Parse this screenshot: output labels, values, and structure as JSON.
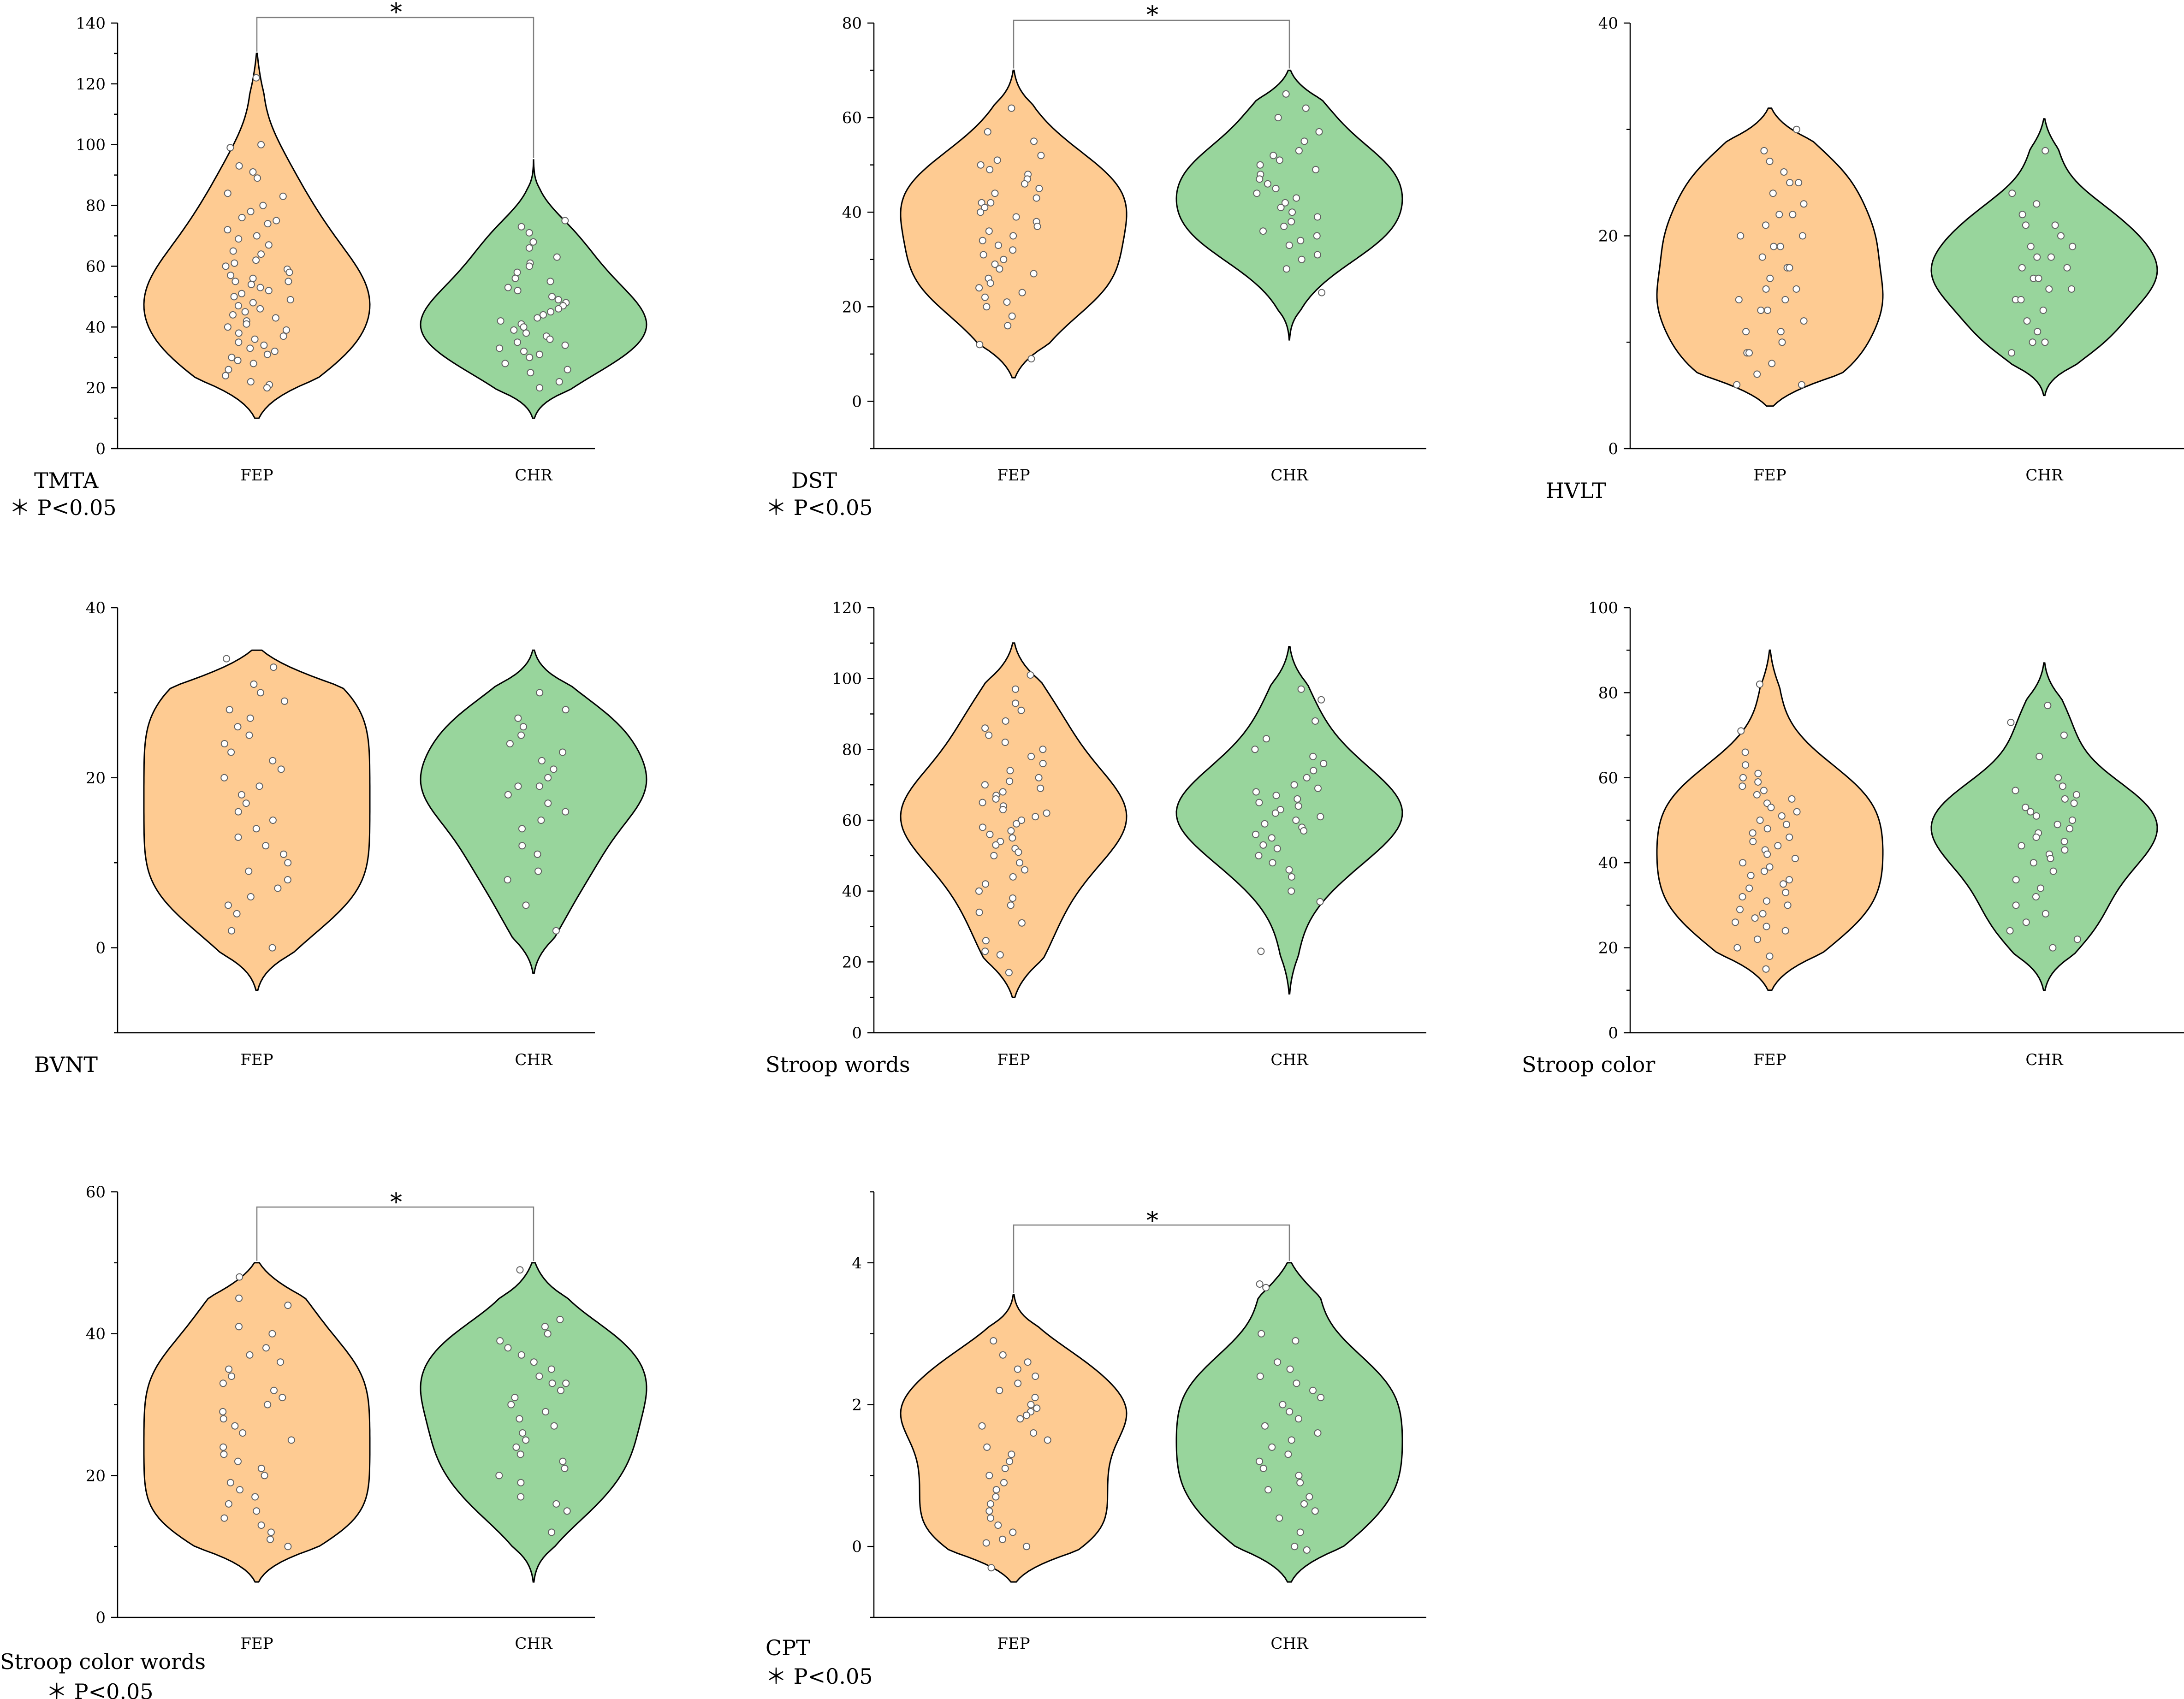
{
  "figure": {
    "colors": {
      "fep": "#FECB92",
      "chr": "#98D59C",
      "outline": "#000000",
      "bracket": "#7f7f7f",
      "point_fill": "#ffffff",
      "point_stroke": "#606060"
    }
  },
  "chart_data": [
    {
      "type": "violin",
      "title": "TMTA",
      "note": "＊ P<0.05",
      "significance": "*",
      "ylim": [
        0,
        140
      ],
      "yticks": [
        0,
        20,
        40,
        60,
        80,
        100,
        120,
        140
      ],
      "categories": [
        "FEP",
        "CHR"
      ],
      "series": [
        {
          "name": "FEP",
          "range": [
            10,
            130
          ],
          "points": [
            122,
            100,
            99,
            93,
            91,
            89,
            84,
            83,
            80,
            78,
            76,
            75,
            74,
            72,
            70,
            69,
            67,
            65,
            64,
            62,
            61,
            60,
            59,
            58,
            57,
            56,
            55,
            55,
            54,
            53,
            52,
            51,
            50,
            49,
            48,
            47,
            46,
            45,
            44,
            43,
            42,
            41,
            40,
            39,
            38,
            37,
            36,
            35,
            34,
            33,
            32,
            31,
            30,
            29,
            28,
            26,
            24,
            22,
            21,
            20
          ]
        },
        {
          "name": "CHR",
          "range": [
            10,
            95
          ],
          "points": [
            75,
            73,
            71,
            68,
            66,
            63,
            61,
            60,
            58,
            56,
            55,
            53,
            52,
            50,
            49,
            48,
            47,
            46,
            45,
            44,
            43,
            42,
            41,
            40,
            39,
            38,
            37,
            36,
            35,
            34,
            33,
            32,
            31,
            30,
            28,
            26,
            25,
            22,
            20
          ]
        }
      ]
    },
    {
      "type": "violin",
      "title": "DST",
      "note": "＊ P<0.05",
      "significance": "*",
      "ylim": [
        -10,
        80
      ],
      "yticks": [
        0,
        20,
        40,
        60,
        80
      ],
      "categories": [
        "FEP",
        "CHR"
      ],
      "series": [
        {
          "name": "FEP",
          "range": [
            5,
            70
          ],
          "points": [
            62,
            57,
            55,
            52,
            51,
            50,
            49,
            48,
            47,
            46,
            45,
            44,
            43,
            42,
            42,
            41,
            40,
            39,
            38,
            37,
            36,
            35,
            34,
            33,
            32,
            31,
            30,
            29,
            28,
            27,
            26,
            25,
            24,
            23,
            22,
            21,
            20,
            18,
            16,
            12,
            9
          ]
        },
        {
          "name": "CHR",
          "range": [
            13,
            70
          ],
          "points": [
            65,
            62,
            60,
            57,
            55,
            53,
            52,
            51,
            50,
            49,
            48,
            47,
            46,
            45,
            44,
            43,
            42,
            41,
            40,
            39,
            38,
            37,
            36,
            35,
            34,
            33,
            31,
            30,
            28,
            23
          ]
        }
      ]
    },
    {
      "type": "violin",
      "title": "HVLT",
      "note": "",
      "significance": "",
      "ylim": [
        0,
        40
      ],
      "yticks": [
        0,
        20,
        40
      ],
      "categories": [
        "FEP",
        "CHR"
      ],
      "series": [
        {
          "name": "FEP",
          "range": [
            4,
            32
          ],
          "points": [
            30,
            28,
            27,
            26,
            25,
            25,
            24,
            23,
            22,
            22,
            21,
            20,
            20,
            19,
            19,
            18,
            17,
            17,
            16,
            15,
            15,
            14,
            14,
            13,
            13,
            12,
            11,
            11,
            10,
            9,
            9,
            8,
            7,
            6,
            6
          ]
        },
        {
          "name": "CHR",
          "range": [
            5,
            31
          ],
          "points": [
            28,
            24,
            23,
            22,
            21,
            21,
            20,
            19,
            19,
            18,
            18,
            17,
            17,
            16,
            16,
            15,
            15,
            14,
            14,
            13,
            12,
            11,
            10,
            10,
            9
          ]
        }
      ]
    },
    {
      "type": "violin",
      "title": "BVNT",
      "note": "",
      "significance": "",
      "ylim": [
        -10,
        40
      ],
      "yticks": [
        0,
        20,
        40
      ],
      "categories": [
        "FEP",
        "CHR"
      ],
      "series": [
        {
          "name": "FEP",
          "range": [
            -5,
            35
          ],
          "points": [
            34,
            33,
            31,
            30,
            29,
            28,
            27,
            26,
            25,
            24,
            23,
            22,
            21,
            20,
            19,
            18,
            17,
            16,
            15,
            14,
            13,
            12,
            11,
            10,
            9,
            8,
            7,
            6,
            5,
            4,
            2,
            0
          ]
        },
        {
          "name": "CHR",
          "range": [
            -3,
            35
          ],
          "points": [
            30,
            28,
            27,
            26,
            25,
            24,
            23,
            22,
            21,
            20,
            19,
            19,
            18,
            17,
            16,
            15,
            14,
            12,
            11,
            9,
            8,
            5,
            2
          ]
        }
      ]
    },
    {
      "type": "violin",
      "title": "Stroop words",
      "note": "",
      "significance": "",
      "ylim": [
        0,
        120
      ],
      "yticks": [
        0,
        20,
        40,
        60,
        80,
        100,
        120
      ],
      "categories": [
        "FEP",
        "CHR"
      ],
      "series": [
        {
          "name": "FEP",
          "range": [
            10,
            110
          ],
          "points": [
            101,
            97,
            93,
            91,
            88,
            86,
            84,
            82,
            80,
            78,
            76,
            74,
            72,
            71,
            70,
            69,
            68,
            67,
            66,
            65,
            64,
            63,
            62,
            61,
            60,
            59,
            58,
            57,
            56,
            55,
            54,
            53,
            52,
            51,
            50,
            48,
            46,
            44,
            42,
            40,
            38,
            36,
            34,
            31,
            26,
            23,
            22,
            17
          ]
        },
        {
          "name": "CHR",
          "range": [
            11,
            109
          ],
          "points": [
            97,
            94,
            88,
            83,
            80,
            78,
            76,
            74,
            72,
            70,
            69,
            68,
            67,
            66,
            65,
            64,
            63,
            62,
            61,
            60,
            59,
            58,
            57,
            56,
            55,
            53,
            52,
            50,
            48,
            46,
            44,
            40,
            37,
            23
          ]
        }
      ]
    },
    {
      "type": "violin",
      "title": "Stroop color",
      "note": "",
      "significance": "",
      "ylim": [
        0,
        100
      ],
      "yticks": [
        0,
        20,
        40,
        60,
        80,
        100
      ],
      "categories": [
        "FEP",
        "CHR"
      ],
      "series": [
        {
          "name": "FEP",
          "range": [
            10,
            90
          ],
          "points": [
            82,
            71,
            66,
            63,
            61,
            60,
            59,
            58,
            57,
            56,
            55,
            54,
            53,
            52,
            51,
            50,
            49,
            48,
            47,
            46,
            45,
            44,
            43,
            42,
            41,
            40,
            39,
            38,
            37,
            36,
            35,
            34,
            33,
            32,
            31,
            30,
            29,
            28,
            27,
            26,
            25,
            24,
            22,
            20,
            18,
            15
          ]
        },
        {
          "name": "CHR",
          "range": [
            10,
            87
          ],
          "points": [
            77,
            73,
            70,
            65,
            60,
            58,
            57,
            56,
            55,
            54,
            53,
            52,
            51,
            50,
            49,
            48,
            47,
            46,
            45,
            44,
            43,
            42,
            41,
            40,
            38,
            36,
            34,
            32,
            30,
            28,
            26,
            24,
            22,
            20
          ]
        }
      ]
    },
    {
      "type": "violin",
      "title": "Stroop color words",
      "note": "＊ P<0.05",
      "significance": "*",
      "ylim": [
        0,
        60
      ],
      "yticks": [
        0,
        20,
        40,
        60
      ],
      "categories": [
        "FEP",
        "CHR"
      ],
      "series": [
        {
          "name": "FEP",
          "range": [
            5,
            50
          ],
          "points": [
            48,
            45,
            44,
            41,
            40,
            38,
            37,
            36,
            35,
            34,
            33,
            32,
            31,
            30,
            29,
            28,
            27,
            26,
            25,
            24,
            23,
            22,
            21,
            20,
            19,
            18,
            17,
            16,
            15,
            14,
            13,
            12,
            11,
            10
          ]
        },
        {
          "name": "CHR",
          "range": [
            5,
            50
          ],
          "points": [
            49,
            42,
            41,
            40,
            39,
            38,
            37,
            36,
            35,
            34,
            33,
            33,
            32,
            31,
            30,
            29,
            28,
            27,
            26,
            25,
            24,
            23,
            22,
            21,
            20,
            19,
            17,
            16,
            15,
            12
          ]
        }
      ]
    },
    {
      "type": "violin",
      "title": "CPT",
      "note": "＊ P<0.05",
      "significance": "*",
      "ylim": [
        -1,
        5
      ],
      "yticks": [
        0,
        2,
        4
      ],
      "categories": [
        "FEP",
        "CHR"
      ],
      "series": [
        {
          "name": "FEP",
          "range": [
            -0.5,
            3.55
          ],
          "points": [
            2.9,
            2.7,
            2.6,
            2.5,
            2.4,
            2.3,
            2.2,
            2.1,
            2.0,
            1.95,
            1.9,
            1.85,
            1.8,
            1.7,
            1.6,
            1.5,
            1.4,
            1.3,
            1.2,
            1.1,
            1.0,
            0.9,
            0.8,
            0.7,
            0.6,
            0.5,
            0.4,
            0.3,
            0.2,
            0.1,
            0.05,
            0.0,
            -0.3
          ]
        },
        {
          "name": "CHR",
          "range": [
            -0.5,
            4.0
          ],
          "points": [
            3.7,
            3.65,
            3.0,
            2.9,
            2.6,
            2.5,
            2.4,
            2.3,
            2.2,
            2.1,
            2.0,
            1.9,
            1.8,
            1.7,
            1.6,
            1.5,
            1.4,
            1.3,
            1.2,
            1.1,
            1.0,
            0.9,
            0.8,
            0.7,
            0.6,
            0.5,
            0.4,
            0.2,
            0.0,
            -0.05
          ]
        }
      ]
    }
  ]
}
